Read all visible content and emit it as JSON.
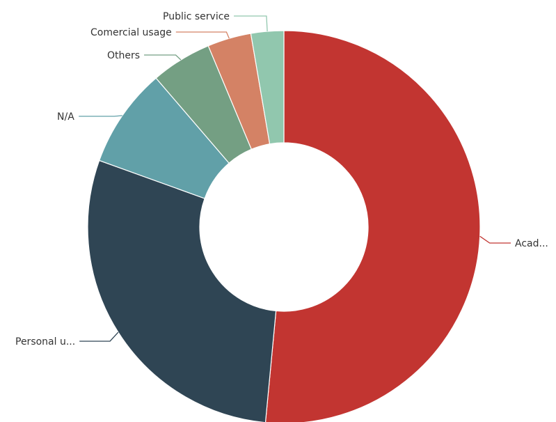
{
  "chart_data": {
    "type": "pie",
    "variant": "donut",
    "title": "",
    "series": [
      {
        "name": "",
        "slices": [
          {
            "label": "Academic use",
            "display_label": "Acad...",
            "value": 51.5,
            "color": "#c23531",
            "label_side": "right"
          },
          {
            "label": "Personal use",
            "display_label": "Personal u...",
            "value": 29.0,
            "color": "#2f4554",
            "label_side": "left"
          },
          {
            "label": "N/A",
            "display_label": "N/A",
            "value": 8.2,
            "color": "#61a0a8",
            "label_side": "left"
          },
          {
            "label": "Others",
            "display_label": "Others",
            "value": 5.0,
            "color": "#749f83",
            "label_side": "left"
          },
          {
            "label": "Comercial usage",
            "display_label": "Comercial usage",
            "value": 3.6,
            "color": "#d48265",
            "label_side": "left"
          },
          {
            "label": "Public service",
            "display_label": "Public service",
            "value": 2.7,
            "color": "#91c7ae",
            "label_side": "left"
          }
        ]
      }
    ],
    "start_angle_deg": 90,
    "direction": "clockwise",
    "legend": "none",
    "labels": "outside-with-leader-lines"
  }
}
